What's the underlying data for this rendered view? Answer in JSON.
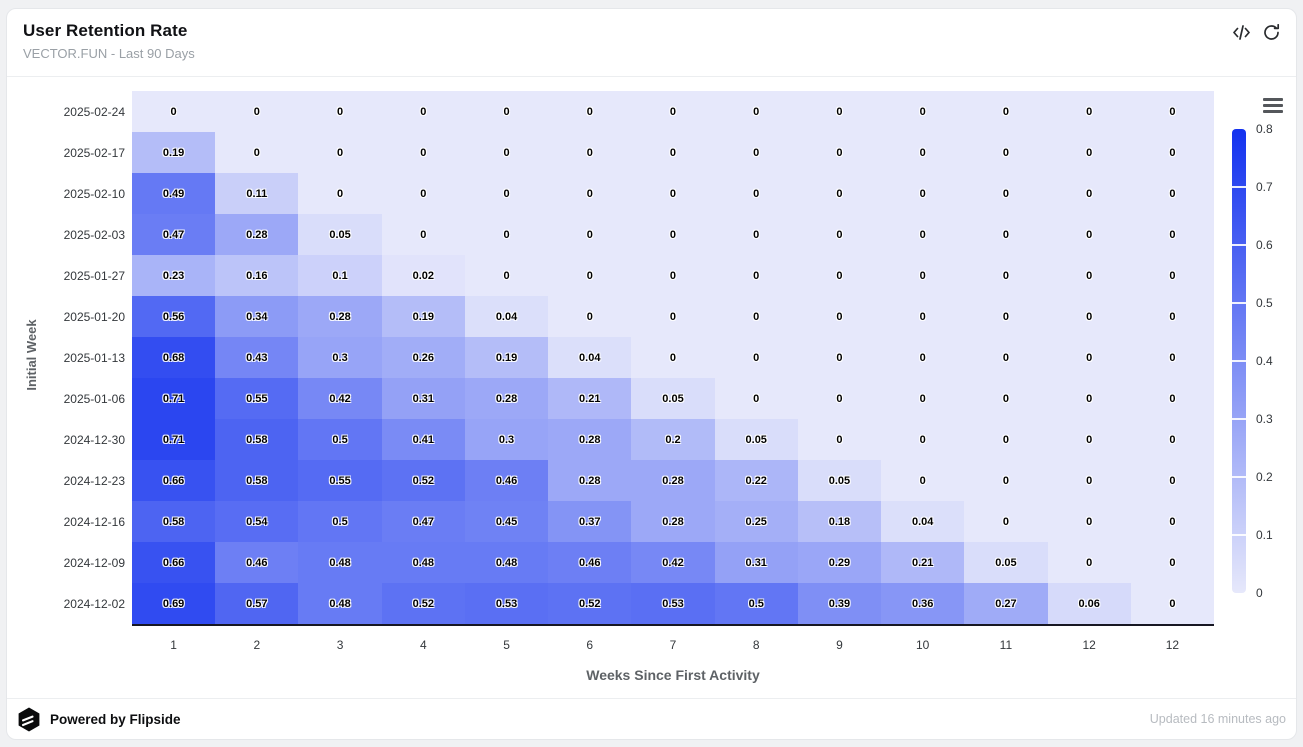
{
  "header": {
    "title": "User Retention Rate",
    "subtitle": "VECTOR.FUN - Last 90 Days",
    "icons": [
      "code-icon",
      "refresh-icon"
    ]
  },
  "footer": {
    "powered_by": "Powered by Flipside",
    "updated": "Updated 16 minutes ago"
  },
  "chart_data": {
    "type": "heatmap",
    "title": "User Retention Rate",
    "xlabel": "Weeks Since First Activity",
    "ylabel": "Initial Week",
    "x_ticks": [
      "1",
      "2",
      "3",
      "4",
      "5",
      "6",
      "7",
      "8",
      "9",
      "10",
      "11",
      "12",
      "12"
    ],
    "y_ticks": [
      "2025-02-24",
      "2025-02-17",
      "2025-02-10",
      "2025-02-03",
      "2025-01-27",
      "2025-01-20",
      "2025-01-13",
      "2025-01-06",
      "2024-12-30",
      "2024-12-23",
      "2024-12-16",
      "2024-12-09",
      "2024-12-02"
    ],
    "values": [
      [
        0,
        0,
        0,
        0,
        0,
        0,
        0,
        0,
        0,
        0,
        0,
        0,
        0
      ],
      [
        0.19,
        0,
        0,
        0,
        0,
        0,
        0,
        0,
        0,
        0,
        0,
        0,
        0
      ],
      [
        0.49,
        0.11,
        0,
        0,
        0,
        0,
        0,
        0,
        0,
        0,
        0,
        0,
        0
      ],
      [
        0.47,
        0.28,
        0.05,
        0,
        0,
        0,
        0,
        0,
        0,
        0,
        0,
        0,
        0
      ],
      [
        0.23,
        0.16,
        0.1,
        0.02,
        0,
        0,
        0,
        0,
        0,
        0,
        0,
        0,
        0
      ],
      [
        0.56,
        0.34,
        0.28,
        0.19,
        0.04,
        0,
        0,
        0,
        0,
        0,
        0,
        0,
        0
      ],
      [
        0.68,
        0.43,
        0.3,
        0.26,
        0.19,
        0.04,
        0,
        0,
        0,
        0,
        0,
        0,
        0
      ],
      [
        0.71,
        0.55,
        0.42,
        0.31,
        0.28,
        0.21,
        0.05,
        0,
        0,
        0,
        0,
        0,
        0
      ],
      [
        0.71,
        0.58,
        0.5,
        0.41,
        0.3,
        0.28,
        0.2,
        0.05,
        0,
        0,
        0,
        0,
        0
      ],
      [
        0.66,
        0.58,
        0.55,
        0.52,
        0.46,
        0.28,
        0.28,
        0.22,
        0.05,
        0,
        0,
        0,
        0
      ],
      [
        0.58,
        0.54,
        0.5,
        0.47,
        0.45,
        0.37,
        0.28,
        0.25,
        0.18,
        0.04,
        0,
        0,
        0
      ],
      [
        0.66,
        0.46,
        0.48,
        0.48,
        0.48,
        0.46,
        0.42,
        0.31,
        0.29,
        0.21,
        0.05,
        0,
        0
      ],
      [
        0.69,
        0.57,
        0.48,
        0.52,
        0.53,
        0.52,
        0.53,
        0.5,
        0.39,
        0.36,
        0.27,
        0.06,
        0
      ]
    ],
    "colorbar": {
      "min": 0,
      "max": 0.8,
      "tick_labels": [
        "0.8",
        "0.7",
        "0.6",
        "0.5",
        "0.4",
        "0.3",
        "0.2",
        "0.1",
        "0"
      ],
      "color_low": "#e6e8fb",
      "color_high": "#1332ef"
    },
    "grid": false,
    "legend_position": "right",
    "menu_icon": "hamburger-menu-icon"
  }
}
